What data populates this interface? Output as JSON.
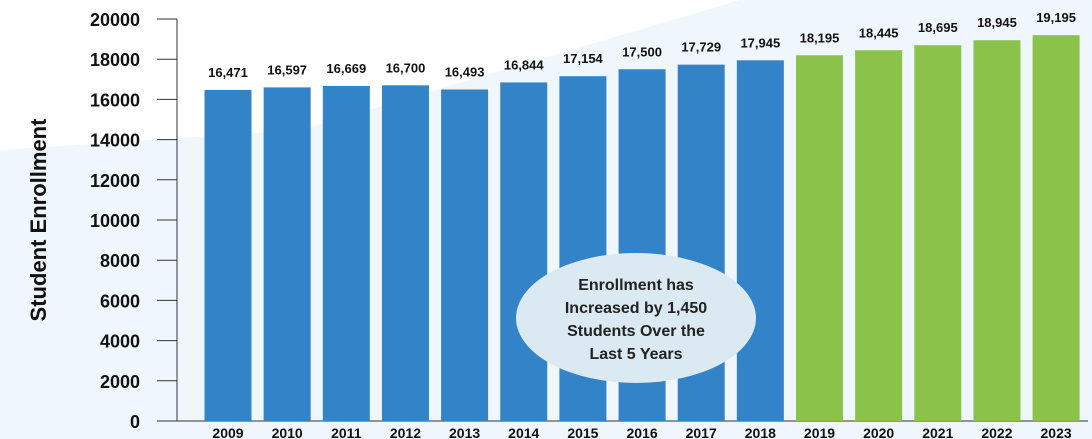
{
  "chart_data": {
    "type": "bar",
    "title": "",
    "xlabel": "",
    "ylabel": "Student Enrollment",
    "ylim": [
      0,
      20000
    ],
    "yticks": [
      0,
      2000,
      4000,
      6000,
      8000,
      10000,
      12000,
      14000,
      16000,
      18000,
      20000
    ],
    "categories": [
      "2009",
      "2010",
      "2011",
      "2012",
      "2013",
      "2014",
      "2015",
      "2016",
      "2017",
      "2018",
      "2019",
      "2020",
      "2021",
      "2022",
      "2023"
    ],
    "values": [
      16471,
      16597,
      16669,
      16700,
      16493,
      16844,
      17154,
      17500,
      17729,
      17945,
      18195,
      18445,
      18695,
      18945,
      19195
    ],
    "value_labels": [
      "16,471",
      "16,597",
      "16,669",
      "16,700",
      "16,493",
      "16,844",
      "17,154",
      "17,500",
      "17,729",
      "17,945",
      "18,195",
      "18,445",
      "18,695",
      "18,945",
      "19,195"
    ],
    "bar_colors": [
      "#3283c8",
      "#3283c8",
      "#3283c8",
      "#3283c8",
      "#3283c8",
      "#3283c8",
      "#3283c8",
      "#3283c8",
      "#3283c8",
      "#3283c8",
      "#8bc34a",
      "#8bc34a",
      "#8bc34a",
      "#8bc34a",
      "#8bc34a"
    ],
    "grid": false,
    "legend": "none",
    "annotation": {
      "lines": [
        "Enrollment has",
        "Increased by 1,450",
        "Students Over the",
        "Last 5 Years"
      ],
      "fill": "#dbe9f2"
    }
  },
  "colors": {
    "historical_bar": "#3283c8",
    "projected_bar": "#8bc34a",
    "background_tint": "#eaf4fb",
    "text": "#111111"
  }
}
